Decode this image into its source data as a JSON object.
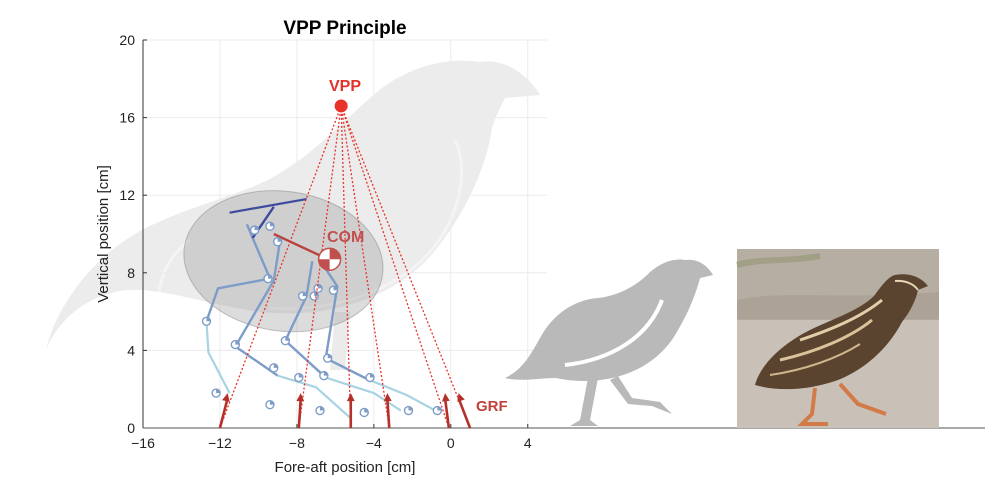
{
  "chart_data": {
    "type": "scatter",
    "title": "VPP Principle",
    "xlabel": "Fore-aft position [cm]",
    "ylabel": "Vertical position [cm]",
    "xlim": [
      -16,
      5
    ],
    "ylim": [
      0,
      20
    ],
    "xticks": [
      -16,
      -12,
      -8,
      -4,
      0,
      4
    ],
    "yticks": [
      0,
      4,
      8,
      12,
      16,
      20
    ],
    "xtick_labels": [
      "−16",
      "−12",
      "−8",
      "−4",
      "0",
      "4"
    ],
    "ytick_labels": [
      "0",
      "4",
      "8",
      "12",
      "16",
      "20"
    ],
    "grid": true,
    "vpp": {
      "label": "VPP",
      "x": -5.7,
      "y": 16.6
    },
    "com": {
      "label": "COM",
      "x": -6.3,
      "y": 8.7
    },
    "grf_label": "GRF",
    "grf_vectors": [
      {
        "x0": -12.0,
        "x1": -11.6,
        "y1": 1.8
      },
      {
        "x0": -7.9,
        "x1": -7.8,
        "y1": 1.8
      },
      {
        "x0": -5.2,
        "x1": -5.2,
        "y1": 1.8
      },
      {
        "x0": -3.2,
        "x1": -3.3,
        "y1": 1.8
      },
      {
        "x0": -0.1,
        "x1": -0.3,
        "y1": 1.8
      },
      {
        "x0": 1.0,
        "x1": 0.4,
        "y1": 1.8
      }
    ],
    "trunk_line": {
      "x": [
        -11.5,
        -7.5
      ],
      "y": [
        11.1,
        11.8
      ]
    },
    "body_ellipse": {
      "cx": -8.7,
      "cy": 8.6,
      "rx": 5.2,
      "ry": 3.6
    },
    "legs": [
      {
        "x": [
          -10.6,
          -9.4,
          -12.1,
          -12.7,
          -12.6,
          -11.5
        ],
        "y": [
          10.5,
          7.7,
          7.2,
          5.5,
          3.9,
          1.8
        ]
      },
      {
        "x": [
          -8.9,
          -9.2,
          -11.2,
          -9.0,
          -7.0,
          -5.2
        ],
        "y": [
          9.5,
          7.6,
          4.2,
          2.7,
          2.1,
          0.5
        ]
      },
      {
        "x": [
          -7.2,
          -7.5,
          -8.6,
          -6.5,
          -4.0,
          -2.6
        ],
        "y": [
          8.6,
          6.8,
          4.5,
          2.6,
          1.8,
          0.9
        ]
      },
      {
        "x": [
          -6.5,
          -5.9,
          -6.5,
          -4.3,
          -2.3,
          -0.8
        ],
        "y": [
          8.2,
          7.3,
          3.6,
          2.5,
          1.7,
          0.9
        ]
      }
    ],
    "joints": [
      {
        "x": -10.2,
        "y": 10.2
      },
      {
        "x": -9.4,
        "y": 10.4
      },
      {
        "x": -9.0,
        "y": 9.6
      },
      {
        "x": -9.5,
        "y": 7.7
      },
      {
        "x": -7.7,
        "y": 6.8
      },
      {
        "x": -6.9,
        "y": 7.2
      },
      {
        "x": -6.1,
        "y": 7.1
      },
      {
        "x": -7.1,
        "y": 6.8
      },
      {
        "x": -12.7,
        "y": 5.5
      },
      {
        "x": -11.2,
        "y": 4.3
      },
      {
        "x": -8.6,
        "y": 4.5
      },
      {
        "x": -6.4,
        "y": 3.6
      },
      {
        "x": -9.2,
        "y": 3.1
      },
      {
        "x": -7.9,
        "y": 2.6
      },
      {
        "x": -6.6,
        "y": 2.7
      },
      {
        "x": -4.2,
        "y": 2.6
      },
      {
        "x": -12.2,
        "y": 1.8
      },
      {
        "x": -9.4,
        "y": 1.2
      },
      {
        "x": -6.8,
        "y": 0.9
      },
      {
        "x": -4.5,
        "y": 0.8
      },
      {
        "x": -2.2,
        "y": 0.9
      },
      {
        "x": -0.7,
        "y": 0.9
      }
    ]
  },
  "colors": {
    "vpp": "#e8332a",
    "com": "#c0504d",
    "grf": "#b5302a",
    "trunk": "#3e4a9e",
    "leg": "#7e9cc8",
    "leg_light": "#a7d3e3",
    "silhouette": "#b9b9b9",
    "ellipse": "#9a9a9a"
  },
  "photo": {
    "alt": "Photo of a quail walking"
  }
}
